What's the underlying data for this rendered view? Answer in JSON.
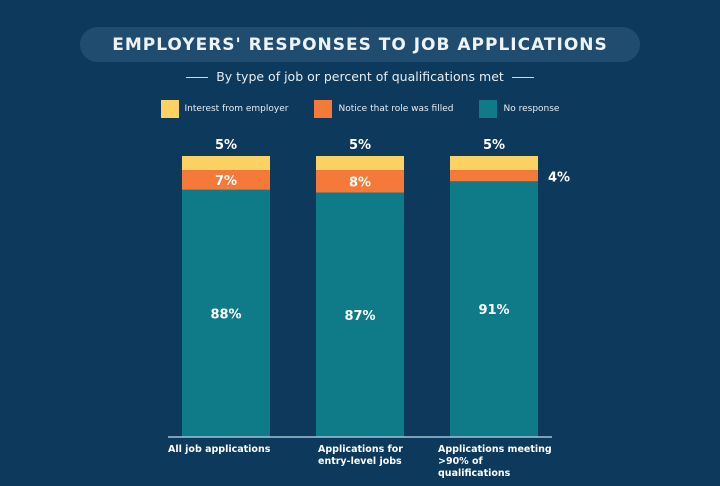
{
  "chart_data": {
    "type": "stacked-bar",
    "title": "EMPLOYERS' RESPONSES TO JOB APPLICATIONS",
    "subtitle": "By type of job or percent of qualifications met",
    "categories": [
      "All job applications",
      "Applications for entry-level jobs",
      "Applications meeting >90% of qualifications"
    ],
    "series": [
      {
        "name": "No response",
        "color": "#0f7b89",
        "values": [
          88,
          87,
          91
        ],
        "labels": [
          "88%",
          "87%",
          "91%"
        ]
      },
      {
        "name": "Notice that role was filled",
        "color": "#f57a3a",
        "values": [
          7,
          8,
          4
        ],
        "labels": [
          "7%",
          "8%",
          "4%"
        ]
      },
      {
        "name": "Interest from employer",
        "color": "#fcd262",
        "values": [
          5,
          5,
          5
        ],
        "labels": [
          "5%",
          "5%",
          "5%"
        ]
      }
    ],
    "legend_order": [
      "Interest from employer",
      "Notice that role was filled",
      "No response"
    ],
    "ylim": [
      0,
      100
    ],
    "grid": false,
    "legend_position": "top"
  }
}
